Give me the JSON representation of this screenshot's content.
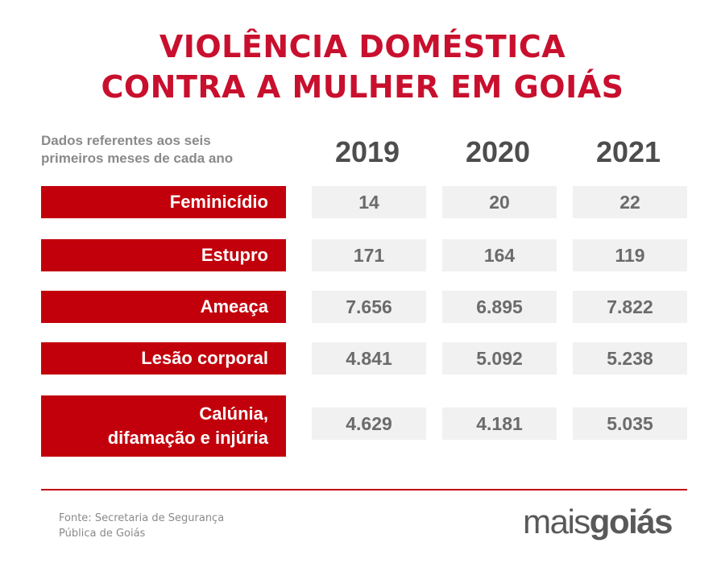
{
  "title": {
    "line1": "VIOLÊNCIA DOMÉSTICA",
    "line2": "CONTRA A MULHER EM GOIÁS"
  },
  "note": {
    "line1": "Dados referentes aos seis",
    "line2": "primeiros meses de cada ano"
  },
  "colors": {
    "title_red": "#c8102e",
    "category_red": "#c2000b",
    "cell_gray": "#f1f1f1"
  },
  "chart_data": {
    "type": "table",
    "columns": [
      "2019",
      "2020",
      "2021"
    ],
    "rows": [
      {
        "category": "Feminicídio",
        "values": [
          "14",
          "20",
          "22"
        ]
      },
      {
        "category": "Estupro",
        "values": [
          "171",
          "164",
          "119"
        ]
      },
      {
        "category": "Ameaça",
        "values": [
          "7.656",
          "6.895",
          "7.822"
        ]
      },
      {
        "category": "Lesão corporal",
        "values": [
          "4.841",
          "5.092",
          "5.238"
        ]
      },
      {
        "category": "Calúnia,\ndifamação e injúria",
        "values": [
          "4.629",
          "4.181",
          "5.035"
        ]
      }
    ]
  },
  "source": {
    "line1": "Fonte: Secretaria de Segurança",
    "line2": "Pública de Goiás"
  },
  "logo": {
    "part1": "mais",
    "part2": "goiás"
  }
}
